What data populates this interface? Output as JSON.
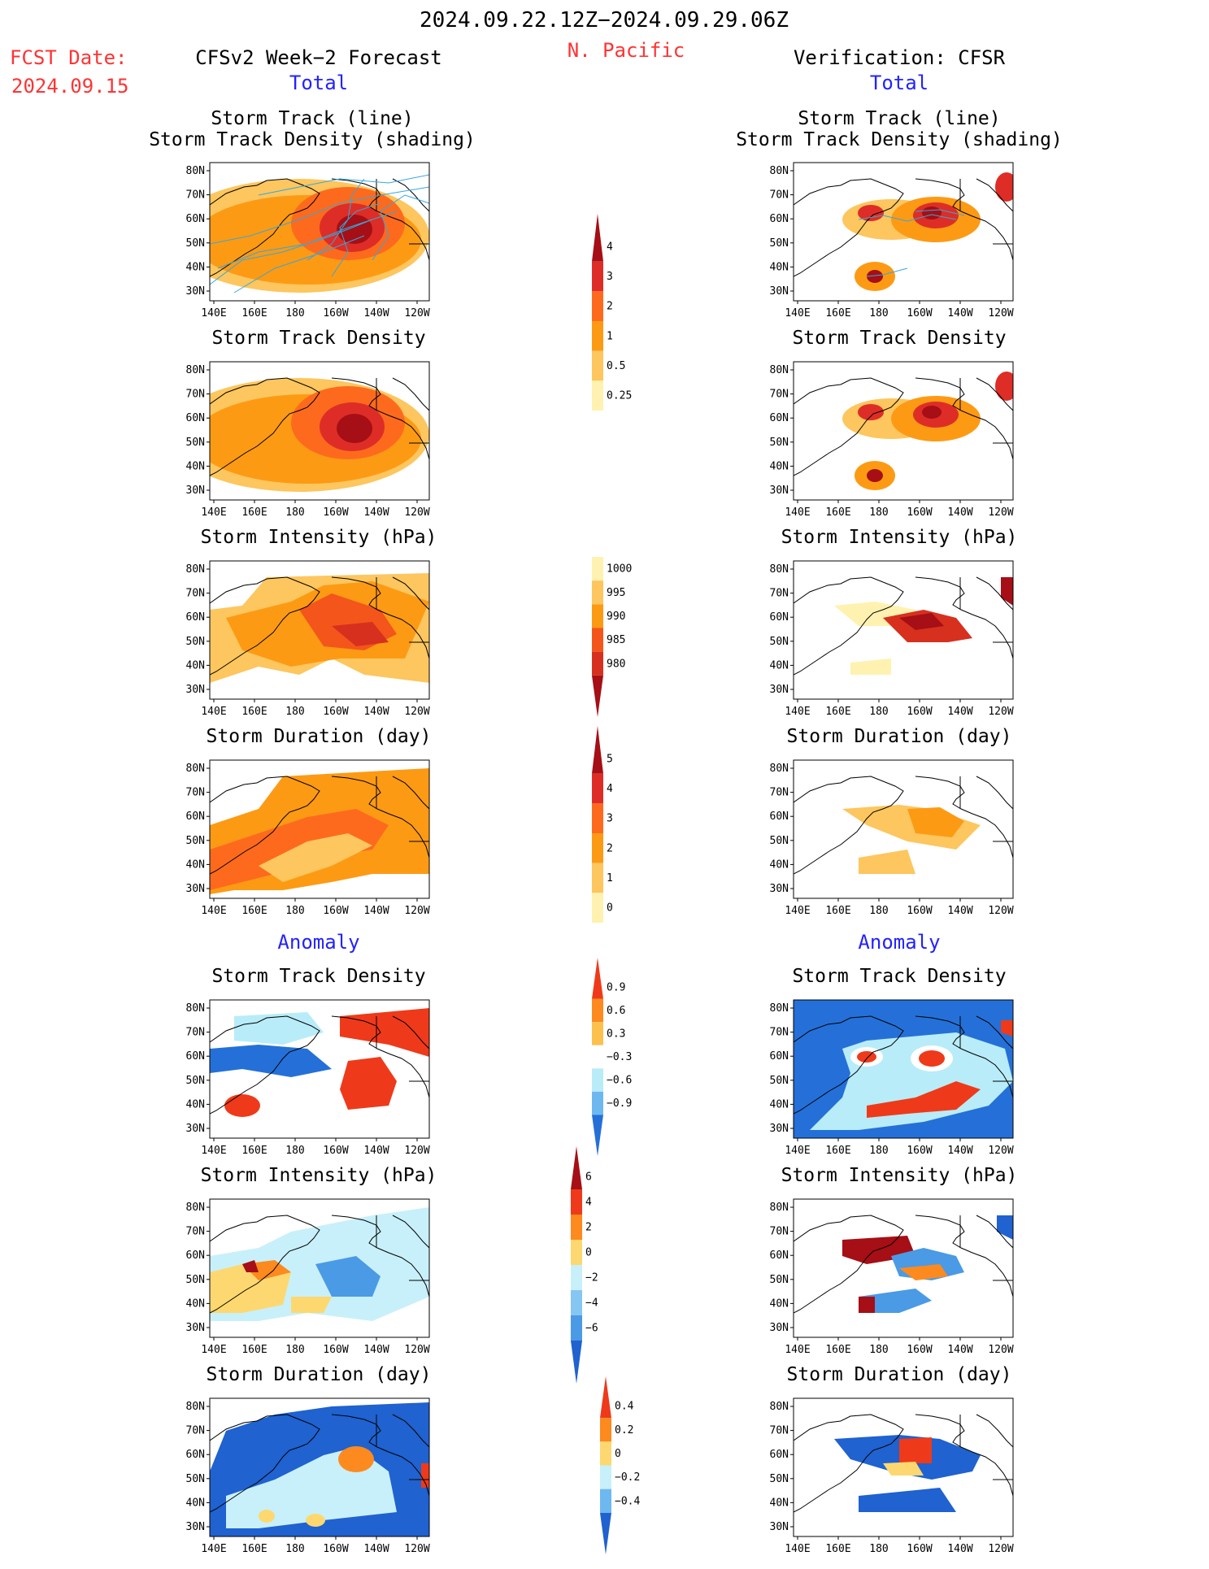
{
  "header": {
    "period": "2024.09.22.12Z−2024.09.29.06Z",
    "region": "N. Pacific",
    "fcst_date_label": "FCST Date:",
    "fcst_date_value": "2024.09.15",
    "forecast_title": "CFSv2 Week−2 Forecast",
    "verification_title": "Verification: CFSR",
    "total_label": "Total",
    "anomaly_label": "Anomaly"
  },
  "panel_titles": {
    "track_line": "Storm Track (line)",
    "track_shading": "Storm Track Density (shading)",
    "density": "Storm Track Density",
    "intensity": "Storm Intensity (hPa)",
    "duration": "Storm Duration (day)"
  },
  "axes": {
    "lon_ticks": [
      "140E",
      "160E",
      "180",
      "160W",
      "140W",
      "120W"
    ],
    "lat_ticks": [
      "80N",
      "70N",
      "60N",
      "50N",
      "40N",
      "30N"
    ]
  },
  "colorbars": {
    "density_total": {
      "labels": [
        "4",
        "3",
        "2",
        "1",
        "0.5",
        "0.25"
      ],
      "colors": [
        "#a50f15",
        "#de2d26",
        "#fd6a1e",
        "#fd9a14",
        "#fdc65e",
        "#fff2b0"
      ]
    },
    "intensity_total": {
      "labels": [
        "1000",
        "995",
        "990",
        "985",
        "980"
      ],
      "colors": [
        "#fff2b0",
        "#fdc65e",
        "#fd9a14",
        "#f4551a",
        "#d7301f",
        "#a50f15"
      ]
    },
    "duration_total": {
      "labels": [
        "5",
        "4",
        "3",
        "2",
        "1",
        "0"
      ],
      "colors": [
        "#a50f15",
        "#de2d26",
        "#fd6a1e",
        "#fd9a14",
        "#fdc65e",
        "#fff2b0"
      ]
    },
    "density_anom": {
      "labels": [
        "0.9",
        "0.6",
        "0.3",
        "−0.3",
        "−0.6",
        "−0.9"
      ],
      "colors": [
        "#ee3a1a",
        "#fd8a1e",
        "#fdc04e",
        "#ffffff",
        "#b8ecf8",
        "#6eb8f0",
        "#2470d8"
      ]
    },
    "intensity_anom": {
      "labels": [
        "6",
        "4",
        "2",
        "0",
        "−2",
        "−4",
        "−6"
      ],
      "colors": [
        "#a50f15",
        "#ee3a1a",
        "#fd8a1e",
        "#fdd870",
        "#c8f0fa",
        "#86c6f2",
        "#4a9ae6",
        "#1f62d0"
      ]
    },
    "duration_anom": {
      "labels": [
        "0.4",
        "0.2",
        "0",
        "−0.2",
        "−0.4"
      ],
      "colors": [
        "#ee3a1a",
        "#fd8a1e",
        "#fdd870",
        "#c8f0fa",
        "#6eb8f0",
        "#1f62d0"
      ]
    }
  },
  "colors": {
    "accent_red": "#ff3333",
    "accent_blue": "#2222ff",
    "track_line": "#33a8e0"
  }
}
